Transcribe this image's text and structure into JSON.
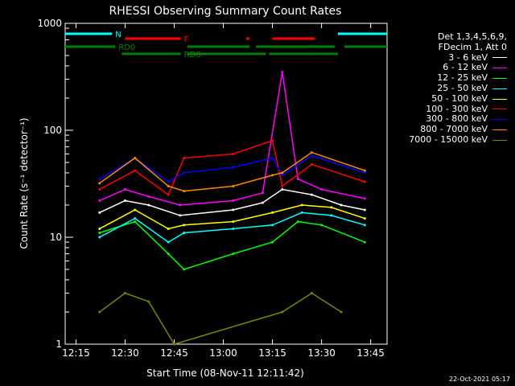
{
  "chart_data": {
    "type": "line",
    "title": "RHESSI Observing Summary Count Rates",
    "xlabel": "Start Time (08-Nov-11 12:11:42)",
    "ylabel": "Count Rate (s⁻¹ detector⁻¹)",
    "y_scale": "log",
    "ylim": [
      1,
      1000
    ],
    "xlim": [
      "12:11:42",
      "13:50:00"
    ],
    "x_ticks": [
      "12:15",
      "12:30",
      "12:45",
      "13:00",
      "13:15",
      "13:30",
      "13:45"
    ],
    "y_ticks": [
      "1",
      "10",
      "100",
      "1000"
    ],
    "legend_header": [
      "Det 1,3,4,5,6,9,",
      "FDecim 1, Att 0"
    ],
    "series": [
      {
        "name": "3 - 6 keV",
        "color": "#ffffff",
        "values": [
          [
            12.37,
            17
          ],
          [
            12.5,
            22
          ],
          [
            12.62,
            20
          ],
          [
            12.78,
            16
          ],
          [
            13.05,
            18
          ],
          [
            13.2,
            21
          ],
          [
            13.3,
            28
          ],
          [
            13.45,
            25
          ],
          [
            13.6,
            20
          ],
          [
            13.72,
            18
          ]
        ]
      },
      {
        "name": "6 - 12 keV",
        "color": "#ff00ff",
        "values": [
          [
            12.37,
            22
          ],
          [
            12.5,
            28
          ],
          [
            12.62,
            24
          ],
          [
            12.78,
            20
          ],
          [
            13.05,
            22
          ],
          [
            13.2,
            26
          ],
          [
            13.3,
            350
          ],
          [
            13.38,
            35
          ],
          [
            13.5,
            28
          ],
          [
            13.72,
            23
          ]
        ]
      },
      {
        "name": "12 - 25 keV",
        "color": "#00ff00",
        "values": [
          [
            12.37,
            11
          ],
          [
            12.55,
            14
          ],
          [
            12.72,
            7
          ],
          [
            12.8,
            5
          ],
          [
            13.05,
            7
          ],
          [
            13.25,
            9
          ],
          [
            13.38,
            14
          ],
          [
            13.5,
            13
          ],
          [
            13.72,
            9
          ]
        ]
      },
      {
        "name": "25 - 50 keV",
        "color": "#00ffff",
        "values": [
          [
            12.37,
            10
          ],
          [
            12.55,
            15
          ],
          [
            12.72,
            9
          ],
          [
            12.8,
            11
          ],
          [
            13.05,
            12
          ],
          [
            13.25,
            13
          ],
          [
            13.4,
            17
          ],
          [
            13.55,
            16
          ],
          [
            13.72,
            13
          ]
        ]
      },
      {
        "name": "50 - 100 keV",
        "color": "#ffff00",
        "values": [
          [
            12.37,
            12
          ],
          [
            12.55,
            18
          ],
          [
            12.72,
            12
          ],
          [
            12.8,
            13
          ],
          [
            13.05,
            14
          ],
          [
            13.25,
            17
          ],
          [
            13.4,
            20
          ],
          [
            13.55,
            19
          ],
          [
            13.72,
            15
          ]
        ]
      },
      {
        "name": "100 - 300 keV",
        "color": "#ff0000",
        "values": [
          [
            12.37,
            28
          ],
          [
            12.55,
            42
          ],
          [
            12.72,
            25
          ],
          [
            12.8,
            55
          ],
          [
            13.05,
            60
          ],
          [
            13.25,
            80
          ],
          [
            13.3,
            30
          ],
          [
            13.45,
            48
          ],
          [
            13.72,
            33
          ]
        ]
      },
      {
        "name": "300 - 800 keV",
        "color": "#0000ff",
        "values": [
          [
            12.37,
            35
          ],
          [
            12.55,
            55
          ],
          [
            12.72,
            33
          ],
          [
            12.8,
            40
          ],
          [
            13.05,
            45
          ],
          [
            13.25,
            55
          ],
          [
            13.3,
            38
          ],
          [
            13.45,
            58
          ],
          [
            13.72,
            40
          ]
        ]
      },
      {
        "name": "800 - 7000 keV",
        "color": "#ff8800",
        "values": [
          [
            12.37,
            32
          ],
          [
            12.55,
            55
          ],
          [
            12.72,
            30
          ],
          [
            12.8,
            27
          ],
          [
            13.05,
            30
          ],
          [
            13.25,
            38
          ],
          [
            13.3,
            40
          ],
          [
            13.45,
            62
          ],
          [
            13.72,
            42
          ]
        ]
      },
      {
        "name": "7000 - 15000 keV",
        "color": "#808000",
        "values": [
          [
            12.37,
            2
          ],
          [
            12.5,
            3
          ],
          [
            12.62,
            2.5
          ],
          [
            12.75,
            1
          ],
          [
            13.3,
            2
          ],
          [
            13.45,
            3
          ],
          [
            13.6,
            2
          ]
        ]
      }
    ],
    "flags": [
      {
        "label": "N",
        "color": "#00ffff",
        "segments": [
          [
            "12:11:42",
            "12:26:00"
          ],
          [
            "13:35:00",
            "13:50:00"
          ]
        ]
      },
      {
        "label": "F",
        "color": "#ff0000",
        "segments": [
          [
            "12:30:00",
            "12:47:00"
          ],
          [
            "13:07:00",
            "13:08:00"
          ],
          [
            "13:15:00",
            "13:28:00"
          ]
        ]
      },
      {
        "label": "RD0",
        "color": "#008000",
        "segments": [
          [
            "12:11:42",
            "12:27:00"
          ],
          [
            "12:49:00",
            "13:08:00"
          ],
          [
            "13:10:00",
            "13:34:00"
          ],
          [
            "13:37:00",
            "13:50:00"
          ]
        ]
      },
      {
        "label": "RD6",
        "color": "#008000",
        "segments": [
          [
            "12:29:00",
            "12:47:00"
          ],
          [
            "12:49:00",
            "13:13:00"
          ],
          [
            "13:14:00",
            "13:35:00"
          ]
        ]
      }
    ]
  },
  "timestamp": "22-Oct-2021 05:17"
}
